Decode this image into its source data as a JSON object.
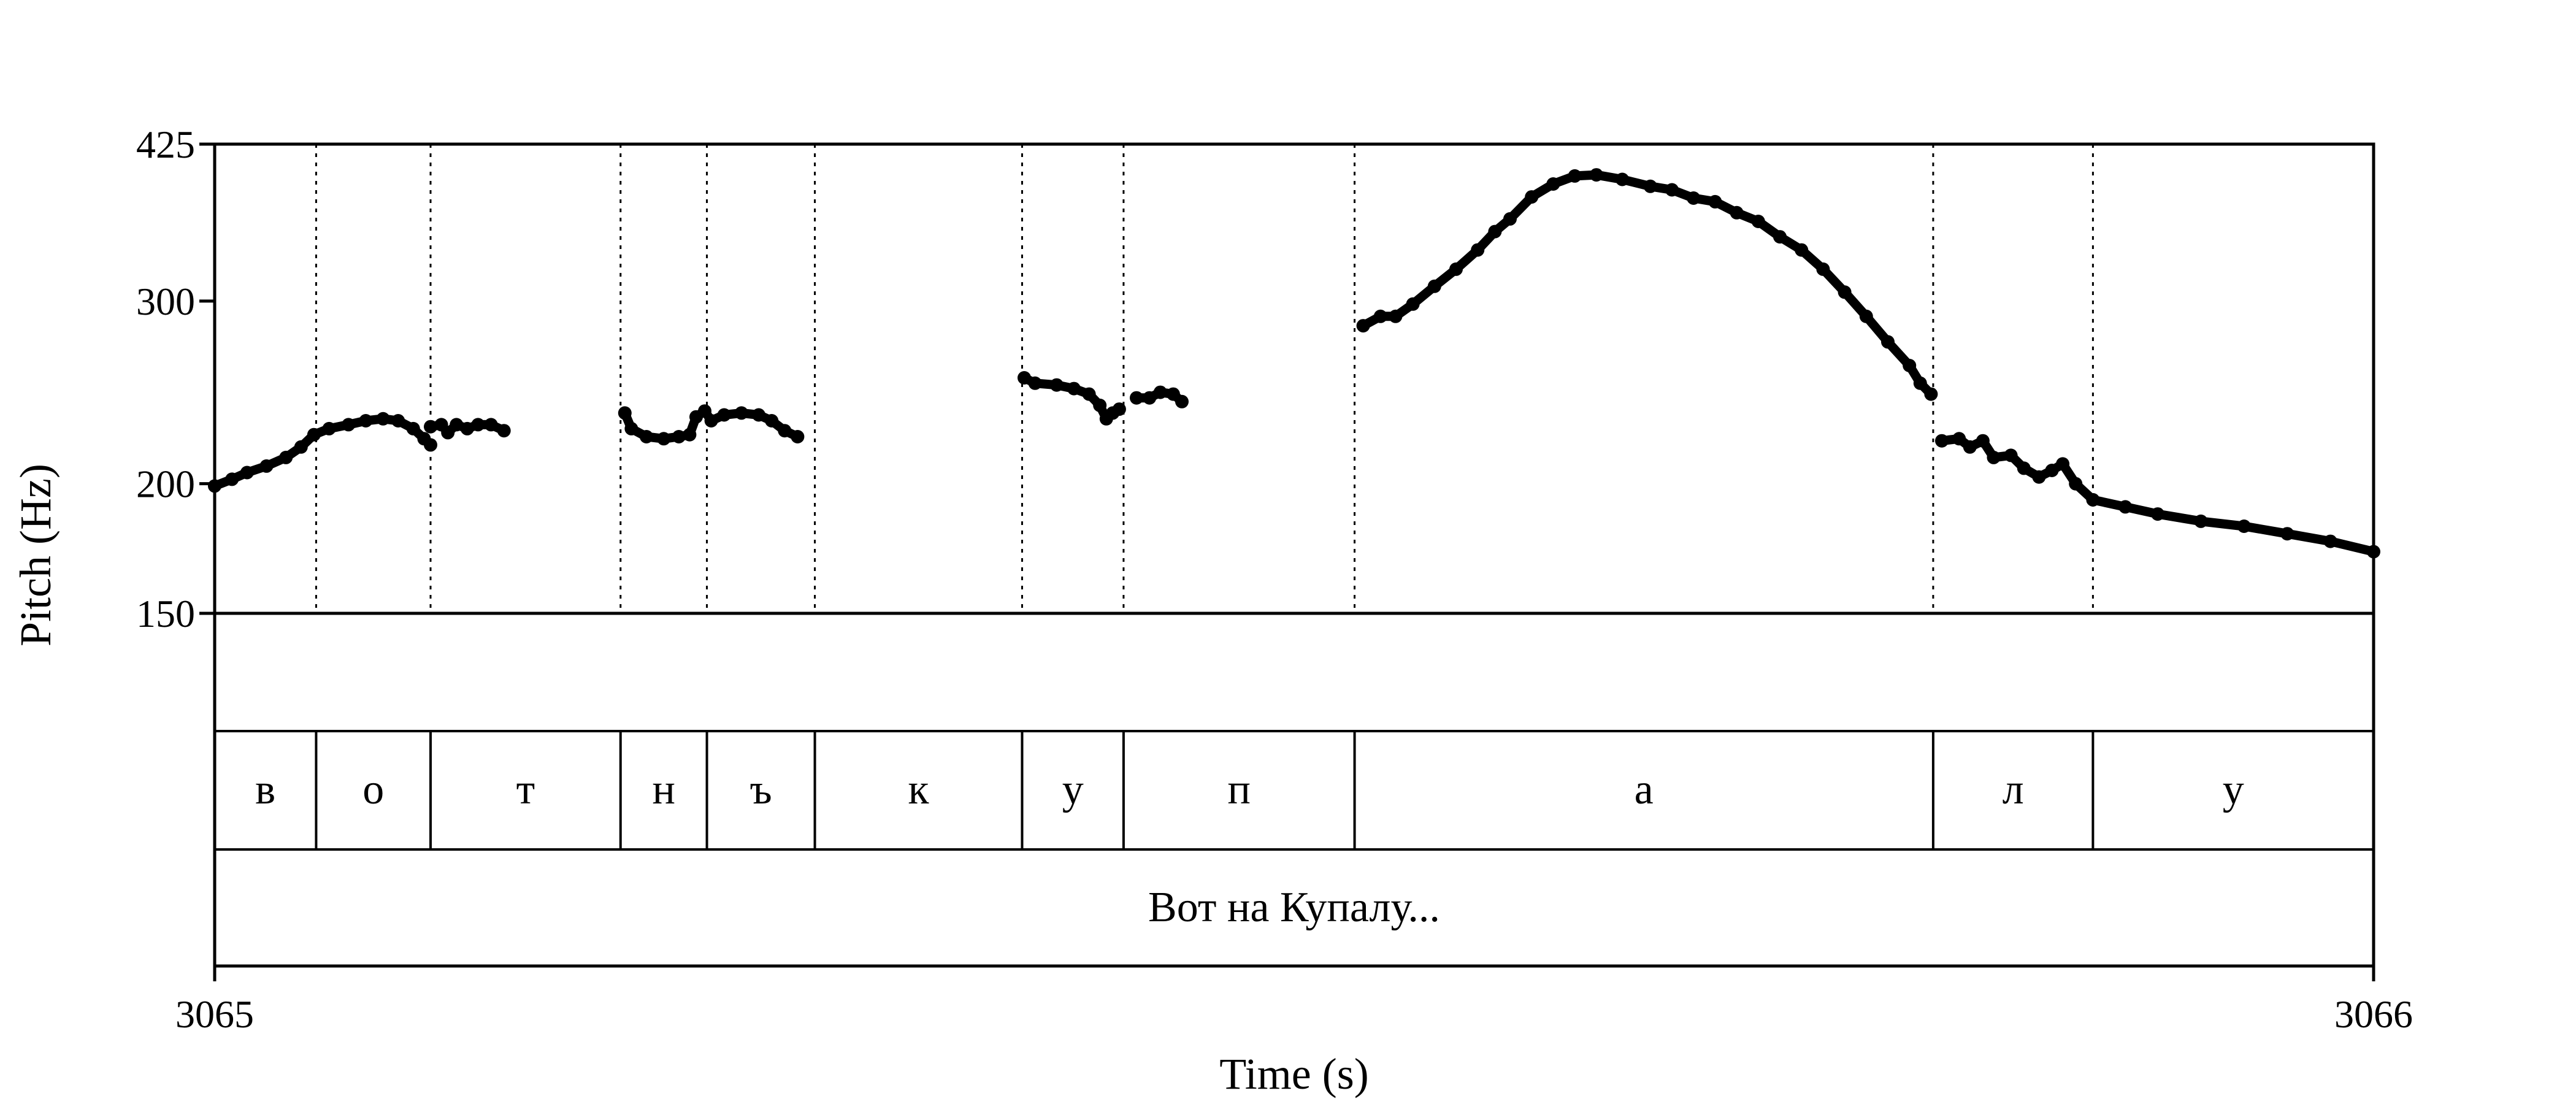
{
  "chart_data": {
    "type": "line",
    "ylabel": "Pitch (Hz)",
    "xlabel": "Time (s)",
    "xlim": [
      3065,
      3066
    ],
    "ylim": [
      150,
      425
    ],
    "y_scale": "log",
    "y_ticks": [
      425,
      300,
      200,
      150
    ],
    "x_ticks": [
      "3065",
      "3066"
    ],
    "grid": false,
    "legend": "none",
    "colors": {
      "curve": "#000000",
      "boundary": "#000000"
    },
    "boundaries": [
      3065.047,
      3065.1,
      3065.188,
      3065.228,
      3065.278,
      3065.374,
      3065.421,
      3065.528,
      3065.796,
      3065.87
    ],
    "segments": [
      {
        "label": "в",
        "start": 3065.0,
        "end": 3065.047
      },
      {
        "label": "о",
        "start": 3065.047,
        "end": 3065.1
      },
      {
        "label": "т",
        "start": 3065.1,
        "end": 3065.188
      },
      {
        "label": "н",
        "start": 3065.188,
        "end": 3065.228
      },
      {
        "label": "ъ",
        "start": 3065.228,
        "end": 3065.278
      },
      {
        "label": "к",
        "start": 3065.278,
        "end": 3065.374
      },
      {
        "label": "у",
        "start": 3065.374,
        "end": 3065.421
      },
      {
        "label": "п",
        "start": 3065.421,
        "end": 3065.528
      },
      {
        "label": "а",
        "start": 3065.528,
        "end": 3065.796
      },
      {
        "label": "л",
        "start": 3065.796,
        "end": 3065.87
      },
      {
        "label": "у",
        "start": 3065.87,
        "end": 3066.0
      }
    ],
    "phrase": "Вот на Купалу...",
    "series": [
      {
        "points": [
          [
            3065.0,
            199
          ],
          [
            3065.008,
            202
          ],
          [
            3065.015,
            205
          ],
          [
            3065.024,
            208
          ],
          [
            3065.033,
            212
          ],
          [
            3065.04,
            217
          ],
          [
            3065.046,
            223
          ],
          [
            3065.053,
            226
          ],
          [
            3065.062,
            228
          ],
          [
            3065.07,
            230
          ],
          [
            3065.078,
            231
          ],
          [
            3065.085,
            230
          ],
          [
            3065.092,
            226
          ],
          [
            3065.097,
            221
          ],
          [
            3065.1,
            218
          ]
        ]
      },
      {
        "points": [
          [
            3065.1,
            227
          ],
          [
            3065.105,
            228
          ],
          [
            3065.108,
            224
          ],
          [
            3065.112,
            228
          ],
          [
            3065.117,
            226
          ],
          [
            3065.122,
            228
          ],
          [
            3065.128,
            228
          ],
          [
            3065.134,
            225
          ]
        ]
      },
      {
        "points": [
          [
            3065.19,
            234
          ],
          [
            3065.193,
            226
          ],
          [
            3065.2,
            222
          ],
          [
            3065.208,
            221
          ],
          [
            3065.215,
            222
          ],
          [
            3065.22,
            223
          ],
          [
            3065.223,
            232
          ],
          [
            3065.227,
            235
          ],
          [
            3065.23,
            230
          ],
          [
            3065.236,
            233
          ],
          [
            3065.244,
            234
          ],
          [
            3065.252,
            233
          ],
          [
            3065.258,
            230
          ],
          [
            3065.264,
            225
          ],
          [
            3065.27,
            222
          ]
        ]
      },
      {
        "points": [
          [
            3065.375,
            253
          ],
          [
            3065.38,
            250
          ],
          [
            3065.39,
            249
          ],
          [
            3065.398,
            247
          ],
          [
            3065.405,
            244
          ],
          [
            3065.41,
            238
          ],
          [
            3065.413,
            231
          ],
          [
            3065.416,
            234
          ],
          [
            3065.419,
            236
          ]
        ]
      },
      {
        "points": [
          [
            3065.427,
            242
          ],
          [
            3065.433,
            242
          ],
          [
            3065.438,
            245
          ],
          [
            3065.444,
            244
          ],
          [
            3065.448,
            240
          ]
        ]
      },
      {
        "points": [
          [
            3065.532,
            284
          ],
          [
            3065.54,
            290
          ],
          [
            3065.547,
            290
          ],
          [
            3065.555,
            298
          ],
          [
            3065.565,
            310
          ],
          [
            3065.575,
            322
          ],
          [
            3065.585,
            336
          ],
          [
            3065.593,
            350
          ],
          [
            3065.6,
            360
          ],
          [
            3065.61,
            378
          ],
          [
            3065.62,
            389
          ],
          [
            3065.63,
            396
          ],
          [
            3065.64,
            397
          ],
          [
            3065.652,
            393
          ],
          [
            3065.665,
            387
          ],
          [
            3065.675,
            384
          ],
          [
            3065.685,
            377
          ],
          [
            3065.695,
            374
          ],
          [
            3065.705,
            365
          ],
          [
            3065.715,
            358
          ],
          [
            3065.725,
            346
          ],
          [
            3065.735,
            336
          ],
          [
            3065.745,
            322
          ],
          [
            3065.755,
            306
          ],
          [
            3065.765,
            290
          ],
          [
            3065.775,
            274
          ],
          [
            3065.785,
            260
          ],
          [
            3065.79,
            250
          ],
          [
            3065.795,
            244
          ]
        ]
      },
      {
        "points": [
          [
            3065.8,
            220
          ],
          [
            3065.808,
            221
          ],
          [
            3065.813,
            217
          ],
          [
            3065.819,
            220
          ],
          [
            3065.824,
            212
          ],
          [
            3065.832,
            213
          ],
          [
            3065.838,
            207
          ],
          [
            3065.845,
            203
          ],
          [
            3065.851,
            206
          ],
          [
            3065.856,
            209
          ],
          [
            3065.862,
            200
          ],
          [
            3065.87,
            193
          ],
          [
            3065.885,
            190
          ],
          [
            3065.9,
            187
          ],
          [
            3065.92,
            184
          ],
          [
            3065.94,
            182
          ],
          [
            3065.96,
            179
          ],
          [
            3065.98,
            176
          ],
          [
            3066.0,
            172
          ]
        ]
      }
    ]
  }
}
